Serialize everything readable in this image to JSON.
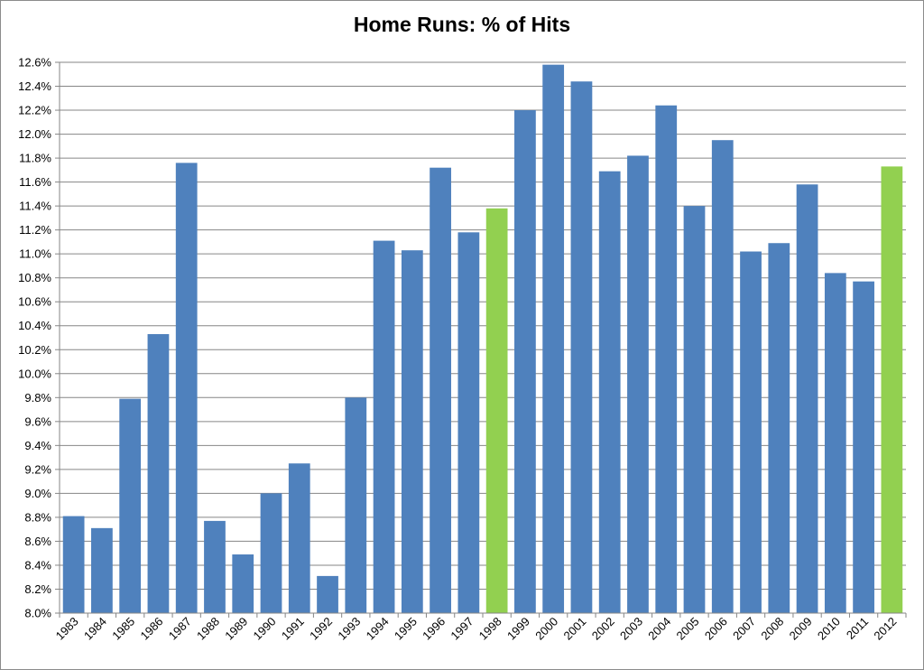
{
  "chart_data": {
    "type": "bar",
    "title": "Home Runs:  % of Hits",
    "xlabel": "",
    "ylabel": "",
    "categories": [
      "1983",
      "1984",
      "1985",
      "1986",
      "1987",
      "1988",
      "1989",
      "1990",
      "1991",
      "1992",
      "1993",
      "1994",
      "1995",
      "1996",
      "1997",
      "1998",
      "1999",
      "2000",
      "2001",
      "2002",
      "2003",
      "2004",
      "2005",
      "2006",
      "2007",
      "2008",
      "2009",
      "2010",
      "2011",
      "2012"
    ],
    "values": [
      8.81,
      8.71,
      9.79,
      10.33,
      11.76,
      8.77,
      8.49,
      9.0,
      9.25,
      8.31,
      9.8,
      11.11,
      11.03,
      11.72,
      11.18,
      11.38,
      12.2,
      12.58,
      12.44,
      11.69,
      11.82,
      12.24,
      11.4,
      11.95,
      11.02,
      11.09,
      11.58,
      10.84,
      10.77,
      11.73
    ],
    "highlighted_categories": [
      "1998",
      "2012"
    ],
    "ylim": [
      8.0,
      12.6
    ],
    "y_ticks": [
      "8.0%",
      "8.2%",
      "8.4%",
      "8.6%",
      "8.8%",
      "9.0%",
      "9.2%",
      "9.4%",
      "9.6%",
      "9.8%",
      "10.0%",
      "10.2%",
      "10.4%",
      "10.6%",
      "10.8%",
      "11.0%",
      "11.2%",
      "11.4%",
      "11.6%",
      "11.8%",
      "12.0%",
      "12.2%",
      "12.4%",
      "12.6%"
    ],
    "grid": true,
    "legend": "none",
    "colors": {
      "bar": "#4f81bd",
      "highlight": "#92d050",
      "grid": "#868686",
      "axis": "#868686"
    }
  }
}
